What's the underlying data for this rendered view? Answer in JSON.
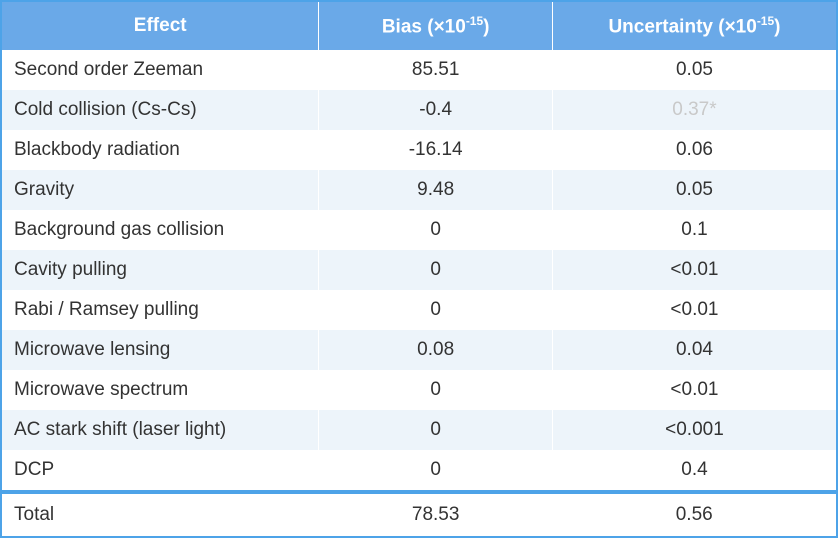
{
  "table": {
    "type": "table",
    "header_bg": "#6aa9e8",
    "header_text_color": "#ffffff",
    "row_bg_odd": "#ffffff",
    "row_bg_even": "#edf4fa",
    "border_color": "#4da3e8",
    "muted_text_color": "#c9c9c9",
    "body_text_color": "#333333",
    "font_size_header": 19,
    "font_size_body": 19,
    "column_widths_pct": [
      38,
      28,
      34
    ],
    "columns": {
      "effect": "Effect",
      "bias_prefix": "Bias (×10",
      "bias_sup": "-15",
      "bias_suffix": ")",
      "unc_prefix": "Uncertainty (×10",
      "unc_sup": "-15",
      "unc_suffix": ")"
    },
    "rows": [
      {
        "effect": "Second order Zeeman",
        "bias": "85.51",
        "uncertainty": "0.05",
        "unc_muted": false
      },
      {
        "effect": "Cold collision (Cs-Cs)",
        "bias": "-0.4",
        "uncertainty": "0.37*",
        "unc_muted": true
      },
      {
        "effect": "Blackbody radiation",
        "bias": "-16.14",
        "uncertainty": "0.06",
        "unc_muted": false
      },
      {
        "effect": "Gravity",
        "bias": "9.48",
        "uncertainty": "0.05",
        "unc_muted": false
      },
      {
        "effect": "Background gas collision",
        "bias": "0",
        "uncertainty": "0.1",
        "unc_muted": false
      },
      {
        "effect": "Cavity pulling",
        "bias": "0",
        "uncertainty": "<0.01",
        "unc_muted": false
      },
      {
        "effect": "Rabi / Ramsey pulling",
        "bias": "0",
        "uncertainty": "<0.01",
        "unc_muted": false
      },
      {
        "effect": "Microwave lensing",
        "bias": "0.08",
        "uncertainty": "0.04",
        "unc_muted": false
      },
      {
        "effect": "Microwave spectrum",
        "bias": "0",
        "uncertainty": "<0.01",
        "unc_muted": false
      },
      {
        "effect": "AC stark shift (laser light)",
        "bias": "0",
        "uncertainty": "<0.001",
        "unc_muted": false
      },
      {
        "effect": "DCP",
        "bias": "0",
        "uncertainty": "0.4",
        "unc_muted": false
      }
    ],
    "total": {
      "label": "Total",
      "bias": "78.53",
      "uncertainty": "0.56"
    }
  }
}
